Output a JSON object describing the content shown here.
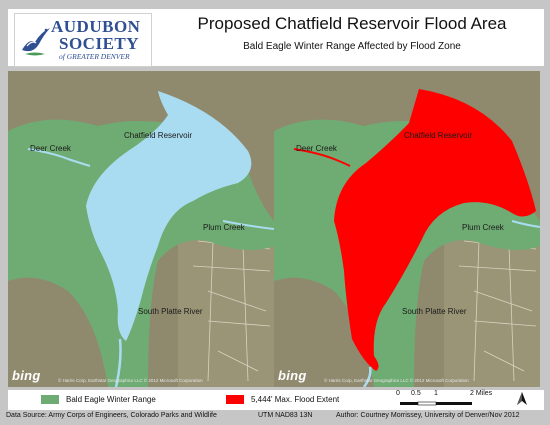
{
  "header": {
    "logo": {
      "line1": "AUDUBON",
      "line2": "SOCIETY",
      "line3": "of GREATER DENVER"
    },
    "title": "Proposed Chatfield Reservoir Flood Area",
    "subtitle": "Bald Eagle Winter Range Affected by Flood Zone"
  },
  "map_left": {
    "labels": {
      "reservoir": "Chatfield Reservoir",
      "deer_creek": "Deer Creek",
      "plum_creek": "Plum Creek",
      "south_platte": "South Platte River"
    },
    "provider": "bing",
    "credit": "© Harris Corp, Earthstar Geographics LLC © 2012 Microsoft Corporation"
  },
  "map_right": {
    "labels": {
      "reservoir": "Chatfield Reservoir",
      "deer_creek": "Deer Creek",
      "plum_creek": "Plum Creek",
      "south_platte": "South Platte River"
    },
    "provider": "bing",
    "credit": "© Harris Corp, Earthstar Geographics LLC © 2012 Microsoft Corporation"
  },
  "legend": {
    "items": [
      {
        "label": "Bald Eagle Winter Range",
        "color": "#6fac73"
      },
      {
        "label": "5,444' Max. Flood Extent",
        "color": "#ff0000"
      }
    ],
    "scale": {
      "ticks": [
        "0",
        "0.5",
        "1",
        "2 Miles"
      ]
    }
  },
  "footer": {
    "source": "Data Source: Army Corps of Engineers, Colorado Parks and Wildlife",
    "projection": "UTM NAD83 13N",
    "author": "Author: Courtney Morrissey, University of Denver/Nov 2012"
  },
  "colors": {
    "eagle_range": "#6fac73",
    "flood": "#ff0000",
    "water": "#a9dcf0",
    "terrain": "#8f8a6e"
  }
}
